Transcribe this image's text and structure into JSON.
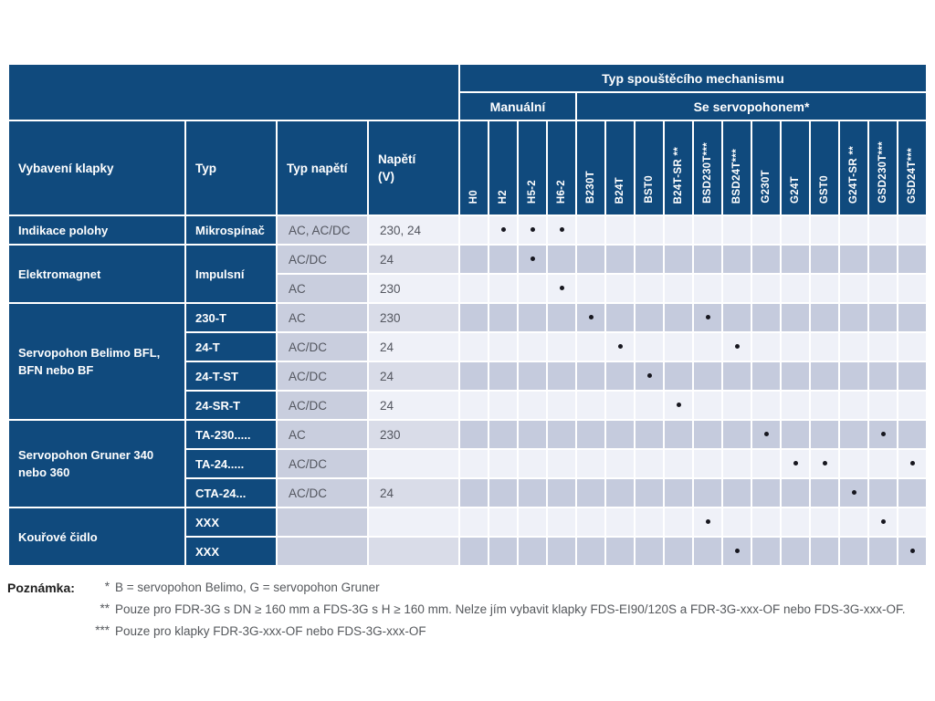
{
  "colors": {
    "blue": "#104a7d",
    "row_light": "#eff1f8",
    "row_dark": "#c5cbdd",
    "col_typ_napeti": "#c9cede",
    "col_napeti_dark": "#d9dce8",
    "dot": "#17171f"
  },
  "table": {
    "title_group": "Typ spouštěcího mechanismu",
    "group_manual": "Manuální",
    "group_servo": "Se servopohonem*",
    "left_headers": [
      "Vybavení klapky",
      "Typ",
      "Typ napětí",
      "Napětí\n(V)"
    ],
    "mech_columns": [
      "H0",
      "H2",
      "H5-2",
      "H6-2",
      "B230T",
      "B24T",
      "BST0",
      "B24T-SR **",
      "BSD230T***",
      "BSD24T***",
      "G230T",
      "G24T",
      "GST0",
      "G24T-SR **",
      "GSD230T***",
      "GSD24T***"
    ],
    "rows": [
      {
        "equipment": "Indikace polohy",
        "eq_span": 1,
        "typ": "Mikrospínač",
        "typ_span": 1,
        "typ_napeti": "AC, AC/DC",
        "napeti": "230, 24",
        "dots": [
          1,
          2,
          3
        ],
        "shade": "light"
      },
      {
        "equipment": "Elektromagnet",
        "eq_span": 2,
        "typ": "Impulsní",
        "typ_span": 2,
        "typ_napeti": "AC/DC",
        "napeti": "24",
        "dots": [
          2
        ],
        "shade": "dark"
      },
      {
        "typ_napeti": "AC",
        "napeti": "230",
        "dots": [
          3
        ],
        "shade": "light"
      },
      {
        "equipment": "Servopohon Belimo BFL, BFN nebo BF",
        "eq_span": 4,
        "typ": "230-T",
        "typ_span": 1,
        "typ_napeti": "AC",
        "napeti": "230",
        "dots": [
          4,
          8
        ],
        "shade": "dark"
      },
      {
        "typ": "24-T",
        "typ_span": 1,
        "typ_napeti": "AC/DC",
        "napeti": "24",
        "dots": [
          5,
          9
        ],
        "shade": "light"
      },
      {
        "typ": "24-T-ST",
        "typ_span": 1,
        "typ_napeti": "AC/DC",
        "napeti": "24",
        "dots": [
          6
        ],
        "shade": "dark"
      },
      {
        "typ": "24-SR-T",
        "typ_span": 1,
        "typ_napeti": "AC/DC",
        "napeti": "24",
        "dots": [
          7
        ],
        "shade": "light"
      },
      {
        "equipment": "Servopohon Gruner 340 nebo 360",
        "eq_span": 3,
        "typ": "TA-230.....",
        "typ_span": 1,
        "typ_napeti": "AC",
        "napeti": "230",
        "dots": [
          10,
          14
        ],
        "shade": "dark"
      },
      {
        "typ": "TA-24.....",
        "typ_span": 1,
        "typ_napeti": "AC/DC",
        "napeti": "",
        "dots": [
          11,
          12,
          15
        ],
        "shade": "light"
      },
      {
        "typ": "CTA-24...",
        "typ_span": 1,
        "typ_napeti": "AC/DC",
        "napeti": "24",
        "dots": [
          13
        ],
        "shade": "dark"
      },
      {
        "equipment": "Kouřové čidlo",
        "eq_span": 2,
        "typ": "XXX",
        "typ_span": 1,
        "typ_napeti": "",
        "napeti": "",
        "dots": [
          8,
          14
        ],
        "shade": "light"
      },
      {
        "typ": "XXX",
        "typ_span": 1,
        "typ_napeti": "",
        "napeti": "",
        "dots": [
          9,
          15
        ],
        "shade": "dark"
      }
    ]
  },
  "footnotes": {
    "label": "Poznámka:",
    "items": [
      {
        "stars": "*",
        "text": "B = servopohon Belimo, G = servopohon Gruner"
      },
      {
        "stars": "**",
        "text": "Pouze pro FDR-3G s DN ≥ 160 mm a FDS-3G s H ≥ 160 mm. Nelze jím vybavit klapky FDS-EI90/120S a FDR-3G-xxx-OF nebo FDS-3G-xxx-OF."
      },
      {
        "stars": "***",
        "text": "Pouze pro klapky FDR-3G-xxx-OF nebo FDS-3G-xxx-OF"
      }
    ]
  }
}
